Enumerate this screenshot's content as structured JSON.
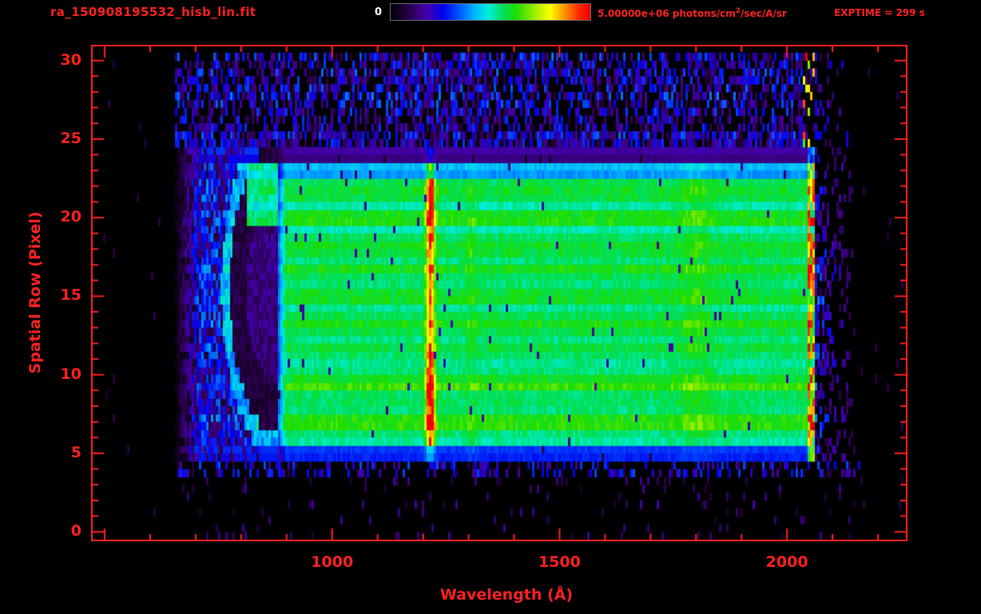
{
  "colors": {
    "background": "#000000",
    "accent": "#ff2020",
    "colorbar_min_text": "#ffffff"
  },
  "header": {
    "title": "ra_150908195532_hisb_lin.fit",
    "colorbar_min": "0",
    "colorbar_max_prefix": "5.00000e+06 photons/cm",
    "colorbar_max_sup": "2",
    "colorbar_max_suffix": "/sec/A/sr",
    "exptime": "EXPTIME = 299 s"
  },
  "chart_data": {
    "type": "heatmap",
    "title": "ra_150908195532_hisb_lin.fit",
    "xlabel": "Wavelength (Å)",
    "ylabel": "Spatial Row (Pixel)",
    "xlim": [
      470,
      2265
    ],
    "ylim": [
      -0.6,
      31
    ],
    "x_ticks": [
      1000,
      1500,
      2000
    ],
    "x_minor_step": 100,
    "x_major_step": 500,
    "y_ticks": [
      0,
      5,
      10,
      15,
      20,
      25,
      30
    ],
    "y_minor_step": 1,
    "y_major_step": 5,
    "colorbar": {
      "min": 0,
      "max": 5000000,
      "units": "photons/cm^2/sec/A/sr",
      "colormap": "rainbow"
    },
    "exptime_seconds": 299,
    "colormap_stops": [
      [
        0.0,
        "#000000"
      ],
      [
        0.09,
        "#2a004a"
      ],
      [
        0.18,
        "#4400aa"
      ],
      [
        0.26,
        "#0000ee"
      ],
      [
        0.34,
        "#0055ff"
      ],
      [
        0.42,
        "#00b4ff"
      ],
      [
        0.49,
        "#00eedd"
      ],
      [
        0.56,
        "#00e060"
      ],
      [
        0.63,
        "#1ddd00"
      ],
      [
        0.72,
        "#9cee00"
      ],
      [
        0.8,
        "#ffff00"
      ],
      [
        0.88,
        "#ff8800"
      ],
      [
        0.95,
        "#ff2200"
      ],
      [
        1.0,
        "#ee0000"
      ]
    ],
    "render": {
      "data_lambda": [
        660,
        2150
      ],
      "signal_rows": [
        5,
        24
      ],
      "continuum": 0.57,
      "line_center": 1216,
      "line_sigma": 6.5,
      "secondary_band_center": 1800,
      "secondary_bump_center": 1306,
      "bright_edge_lambda": [
        2045,
        2062
      ],
      "dark_arc": {
        "center_lambda": 888,
        "center_row": 15.5,
        "radius_lambda": 98,
        "radius_row": 8.2
      },
      "row_gains": [
        0,
        0,
        0,
        0,
        0,
        0.72,
        0.95,
        1.0,
        1.05,
        1.08,
        1.05,
        1.0,
        0.95,
        0.97,
        0.95,
        0.96,
        0.98,
        1.0,
        0.97,
        1.0,
        1.02,
        1.0,
        0.97,
        0.9,
        0.55,
        0,
        0,
        0,
        0,
        0,
        0
      ],
      "line_amps": [
        0,
        0,
        0,
        0,
        0,
        0.2,
        0.45,
        0.5,
        0.5,
        0.55,
        0.5,
        0.45,
        0.3,
        0.3,
        0.32,
        0.3,
        0.3,
        0.32,
        0.3,
        0.45,
        0.5,
        0.5,
        0.45,
        0.3,
        0.2,
        0,
        0,
        0,
        0,
        0,
        0
      ]
    },
    "features": [
      "green continuum (~3e6) across spatial rows 5-24 from ~870 to ~2045 Å",
      "strong saturated emission line at ~1216 Å spanning rows 5-24 (orange/red)",
      "bright saturated detector edge near 2050-2060 Å",
      "faint brighter vertical band near 1800 Å",
      "blue noisy wings at 660-880 Å and 2060-2150 Å",
      "dark crescent-shaped artifact near 790-890 Å over rows 8-23",
      "sparse purple/blue background noise in rows 25-30 and rows 0-4"
    ]
  }
}
